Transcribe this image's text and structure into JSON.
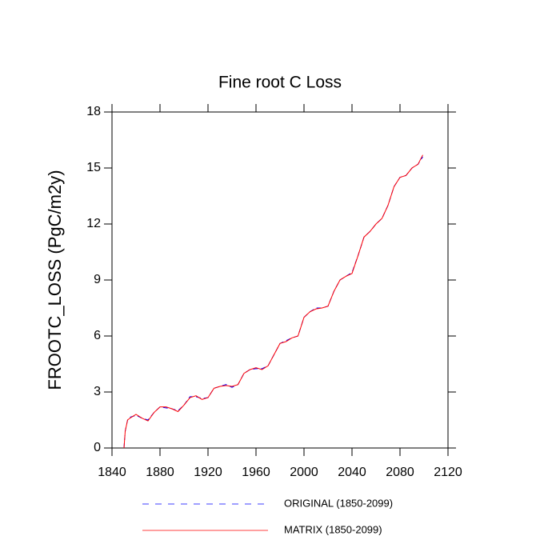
{
  "chart_data": {
    "type": "line",
    "title": "Fine root C Loss",
    "y_label": "FROOTC_LOSS  (PgC/m2y)",
    "x": [
      1850,
      1851,
      1853,
      1855,
      1860,
      1865,
      1870,
      1875,
      1880,
      1885,
      1890,
      1895,
      1900,
      1905,
      1910,
      1915,
      1920,
      1925,
      1930,
      1935,
      1940,
      1945,
      1950,
      1955,
      1960,
      1965,
      1970,
      1975,
      1980,
      1985,
      1990,
      1995,
      2000,
      2005,
      2010,
      2015,
      2020,
      2025,
      2030,
      2035,
      2040,
      2045,
      2050,
      2055,
      2060,
      2065,
      2070,
      2075,
      2080,
      2085,
      2090,
      2095,
      2099
    ],
    "series": [
      {
        "name": "ORIGINAL (1850-2099)",
        "color": "#0000ff",
        "dash": true,
        "values": [
          0,
          0.9,
          1.5,
          1.65,
          1.75,
          1.6,
          1.5,
          1.9,
          2.2,
          2.15,
          2.1,
          2.0,
          2.3,
          2.75,
          2.75,
          2.65,
          2.7,
          3.2,
          3.3,
          3.4,
          3.25,
          3.4,
          4.0,
          4.2,
          4.25,
          4.25,
          4.4,
          5.0,
          5.6,
          5.75,
          5.9,
          6.0,
          7.0,
          7.3,
          7.5,
          7.5,
          7.6,
          8.4,
          9.0,
          9.2,
          9.4,
          10.3,
          11.3,
          11.6,
          12.0,
          12.3,
          13.0,
          14.0,
          14.5,
          14.6,
          15.0,
          15.2,
          15.6
        ]
      },
      {
        "name": "MATRIX (1850-2099)",
        "color": "#ff0000",
        "dash": false,
        "values": [
          0,
          0.9,
          1.5,
          1.6,
          1.8,
          1.6,
          1.45,
          1.9,
          2.2,
          2.2,
          2.1,
          1.95,
          2.3,
          2.7,
          2.8,
          2.6,
          2.7,
          3.2,
          3.3,
          3.35,
          3.3,
          3.4,
          4.0,
          4.2,
          4.3,
          4.2,
          4.4,
          5.0,
          5.6,
          5.7,
          5.9,
          6.0,
          7.0,
          7.3,
          7.45,
          7.5,
          7.6,
          8.4,
          9.0,
          9.2,
          9.35,
          10.3,
          11.3,
          11.6,
          12.0,
          12.3,
          13.0,
          14.0,
          14.5,
          14.6,
          15.0,
          15.2,
          15.7
        ]
      }
    ],
    "xlim": [
      1840,
      2120
    ],
    "xticks": [
      1840,
      1880,
      1920,
      1960,
      2000,
      2040,
      2080,
      2120
    ],
    "ylim": [
      0,
      18
    ],
    "yticks": [
      0,
      3,
      6,
      9,
      12,
      15,
      18
    ],
    "grid": false
  }
}
